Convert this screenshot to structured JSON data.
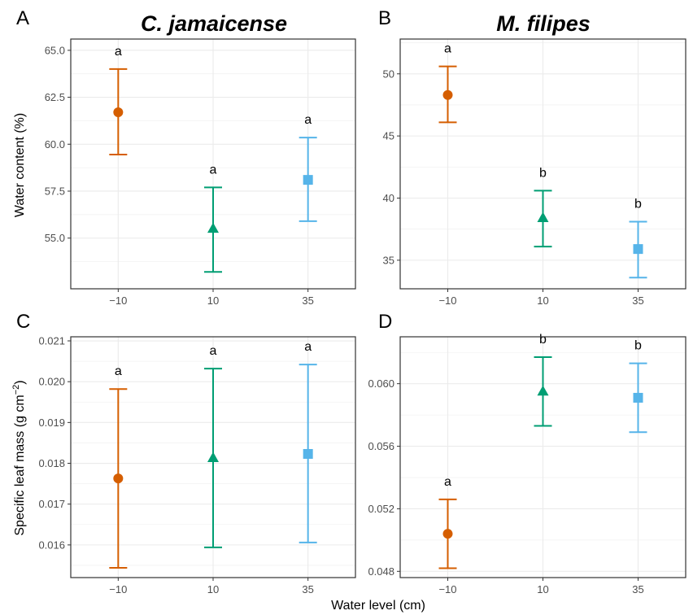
{
  "figure": {
    "xlabel": "Water level (cm)",
    "ylabel_top": "Water content (%)",
    "ylabel_bottom_main": "Specific leaf mass (g cm",
    "ylabel_bottom_sup": "−2",
    "ylabel_bottom_close": ")"
  },
  "colors": {
    "-10": "#D55E00",
    "10": "#009E73",
    "35": "#56B4E9"
  },
  "markers": {
    "-10": "circle",
    "10": "triangle",
    "35": "square"
  },
  "chart_data": [
    {
      "panel": "A",
      "title": "C. jamaicense",
      "type": "scatter",
      "categories": [
        "−10",
        "10",
        "35"
      ],
      "series_keys": [
        "-10",
        "10",
        "35"
      ],
      "values": [
        61.7,
        55.5,
        58.1
      ],
      "lower": [
        59.45,
        53.2,
        55.9
      ],
      "upper": [
        64.0,
        57.7,
        60.35
      ],
      "sig_letters": [
        "a",
        "a",
        "a"
      ],
      "ylim": [
        52.3,
        65.6
      ],
      "yticks": [
        55.0,
        57.5,
        60.0,
        62.5,
        65.0
      ],
      "ytick_labels": [
        "55.0",
        "57.5",
        "60.0",
        "62.5",
        "65.0"
      ],
      "ylabel": "Water content (%)",
      "grid": true
    },
    {
      "panel": "B",
      "title": "M. filipes",
      "type": "scatter",
      "categories": [
        "−10",
        "10",
        "35"
      ],
      "series_keys": [
        "-10",
        "10",
        "35"
      ],
      "values": [
        48.3,
        38.4,
        35.9
      ],
      "lower": [
        46.1,
        36.1,
        33.6
      ],
      "upper": [
        50.6,
        40.6,
        38.1
      ],
      "sig_letters": [
        "a",
        "b",
        "b"
      ],
      "ylim": [
        32.7,
        52.8
      ],
      "yticks": [
        35,
        40,
        45,
        50
      ],
      "ytick_labels": [
        "35",
        "40",
        "45",
        "50"
      ],
      "ylabel": "",
      "grid": true
    },
    {
      "panel": "C",
      "title": "",
      "type": "scatter",
      "categories": [
        "−10",
        "10",
        "35"
      ],
      "series_keys": [
        "-10",
        "10",
        "35"
      ],
      "values": [
        0.01763,
        0.01813,
        0.01823
      ],
      "lower": [
        0.01544,
        0.01594,
        0.01606
      ],
      "upper": [
        0.01982,
        0.02032,
        0.02042
      ],
      "sig_letters": [
        "a",
        "a",
        "a"
      ],
      "ylim": [
        0.0152,
        0.0211
      ],
      "yticks": [
        0.016,
        0.017,
        0.018,
        0.019,
        0.02,
        0.021
      ],
      "ytick_labels": [
        "0.016",
        "0.017",
        "0.018",
        "0.019",
        "0.020",
        "0.021"
      ],
      "ylabel": "Specific leaf mass (g cm−2)",
      "grid": true
    },
    {
      "panel": "D",
      "title": "",
      "type": "scatter",
      "categories": [
        "−10",
        "10",
        "35"
      ],
      "series_keys": [
        "-10",
        "10",
        "35"
      ],
      "values": [
        0.0504,
        0.0595,
        0.0591
      ],
      "lower": [
        0.0482,
        0.0573,
        0.0569
      ],
      "upper": [
        0.0526,
        0.0617,
        0.0613
      ],
      "sig_letters": [
        "a",
        "b",
        "b"
      ],
      "ylim": [
        0.0476,
        0.063
      ],
      "yticks": [
        0.048,
        0.052,
        0.056,
        0.06
      ],
      "ytick_labels": [
        "0.048",
        "0.052",
        "0.056",
        "0.060"
      ],
      "ylabel": "",
      "grid": true
    }
  ]
}
